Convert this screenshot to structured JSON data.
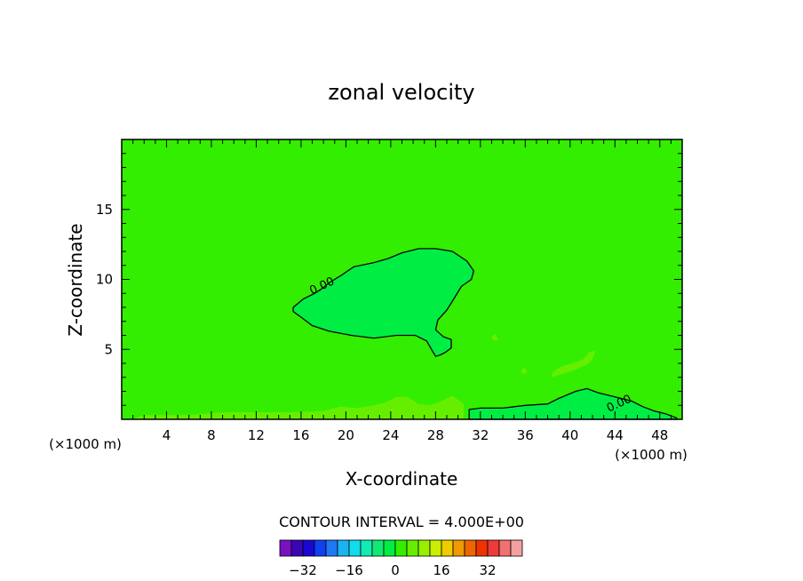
{
  "chart_data": {
    "type": "contour",
    "title": "zonal velocity",
    "xlabel": "X-coordinate",
    "ylabel": "Z-coordinate",
    "x_unit_label": "(×1000 m)",
    "xlim": [
      0,
      50
    ],
    "ylim": [
      0,
      20
    ],
    "x_ticks": [
      4,
      8,
      12,
      16,
      20,
      24,
      28,
      32,
      36,
      40,
      44,
      48
    ],
    "y_ticks": [
      5,
      10,
      15
    ],
    "background_value_color": "#33ee00",
    "contour_interval_label": "CONTOUR INTERVAL = 4.000E+00",
    "contour_labels": [
      {
        "text": "0.00",
        "x": 18.0,
        "z": 9.3
      },
      {
        "text": "0.00",
        "x": 44.5,
        "z": 0.9
      }
    ],
    "regions": [
      {
        "name": "upper-negative-lobe",
        "color": "#00ee44",
        "outline": true,
        "points": [
          [
            15.3,
            8.0
          ],
          [
            16.2,
            8.6
          ],
          [
            17.2,
            9.0
          ],
          [
            17.8,
            9.3
          ],
          [
            18.6,
            9.8
          ],
          [
            19.6,
            10.3
          ],
          [
            20.7,
            10.9
          ],
          [
            22.5,
            11.2
          ],
          [
            23.8,
            11.5
          ],
          [
            25.0,
            11.9
          ],
          [
            26.5,
            12.2
          ],
          [
            28.0,
            12.2
          ],
          [
            29.5,
            12.0
          ],
          [
            30.8,
            11.3
          ],
          [
            31.4,
            10.6
          ],
          [
            31.2,
            10.0
          ],
          [
            30.3,
            9.5
          ],
          [
            29.7,
            8.7
          ],
          [
            29.0,
            7.8
          ],
          [
            28.2,
            7.1
          ],
          [
            28.0,
            6.4
          ],
          [
            28.7,
            5.9
          ],
          [
            29.4,
            5.7
          ],
          [
            29.4,
            5.1
          ],
          [
            28.9,
            4.8
          ],
          [
            28.4,
            4.6
          ],
          [
            28.0,
            4.5
          ],
          [
            27.7,
            4.9
          ],
          [
            27.2,
            5.6
          ],
          [
            26.2,
            6.0
          ],
          [
            24.5,
            6.0
          ],
          [
            22.5,
            5.8
          ],
          [
            20.5,
            6.0
          ],
          [
            18.5,
            6.3
          ],
          [
            17.0,
            6.7
          ],
          [
            16.0,
            7.3
          ],
          [
            15.3,
            7.7
          ]
        ]
      },
      {
        "name": "lower-right-negative-region",
        "color": "#00ee44",
        "outline": true,
        "points": [
          [
            31.0,
            0.0
          ],
          [
            31.0,
            0.7
          ],
          [
            32.0,
            0.8
          ],
          [
            34.0,
            0.8
          ],
          [
            36.0,
            1.0
          ],
          [
            38.0,
            1.1
          ],
          [
            39.0,
            1.5
          ],
          [
            40.5,
            2.0
          ],
          [
            41.5,
            2.2
          ],
          [
            42.5,
            1.9
          ],
          [
            44.0,
            1.6
          ],
          [
            45.5,
            1.3
          ],
          [
            46.5,
            0.9
          ],
          [
            47.5,
            0.6
          ],
          [
            48.5,
            0.4
          ],
          [
            49.5,
            0.1
          ],
          [
            49.5,
            0.0
          ]
        ]
      },
      {
        "name": "right-positive-streak",
        "color": "#66ee00",
        "outline": false,
        "points": [
          [
            38.3,
            3.0
          ],
          [
            40.0,
            3.4
          ],
          [
            41.5,
            3.9
          ],
          [
            42.0,
            4.3
          ],
          [
            42.3,
            4.9
          ],
          [
            41.7,
            4.8
          ],
          [
            41.2,
            4.3
          ],
          [
            40.2,
            4.0
          ],
          [
            39.3,
            3.8
          ],
          [
            38.5,
            3.4
          ]
        ]
      },
      {
        "name": "lower-left-positive-band",
        "color": "#66ee00",
        "outline": false,
        "points": [
          [
            1.0,
            0.0
          ],
          [
            2.0,
            0.3
          ],
          [
            6.0,
            0.3
          ],
          [
            9.0,
            0.5
          ],
          [
            12.0,
            0.5
          ],
          [
            15.0,
            0.5
          ],
          [
            18.0,
            0.6
          ],
          [
            19.5,
            0.9
          ],
          [
            21.0,
            0.8
          ],
          [
            22.5,
            1.0
          ],
          [
            23.5,
            1.2
          ],
          [
            24.5,
            1.6
          ],
          [
            25.5,
            1.6
          ],
          [
            26.5,
            1.1
          ],
          [
            27.5,
            1.0
          ],
          [
            28.5,
            1.3
          ],
          [
            29.5,
            1.7
          ],
          [
            30.5,
            1.1
          ],
          [
            30.5,
            0.0
          ]
        ]
      },
      {
        "name": "small-blob-a",
        "color": "#66ee00",
        "outline": false,
        "points": [
          [
            33.0,
            5.9
          ],
          [
            33.3,
            6.1
          ],
          [
            33.6,
            5.7
          ],
          [
            33.2,
            5.6
          ]
        ]
      },
      {
        "name": "small-blob-b",
        "color": "#66ee00",
        "outline": false,
        "points": [
          [
            35.6,
            3.4
          ],
          [
            35.9,
            3.7
          ],
          [
            36.2,
            3.4
          ],
          [
            35.8,
            3.2
          ]
        ]
      }
    ]
  },
  "colorbar": {
    "tick_labels": [
      "−32",
      "−16",
      "0",
      "16",
      "32"
    ],
    "tick_values": [
      -32,
      -16,
      0,
      16,
      32
    ],
    "colors": [
      "#7a10c0",
      "#3a06b4",
      "#1a08d2",
      "#1040f0",
      "#1e78f2",
      "#1ab4f2",
      "#10dcec",
      "#10ecb4",
      "#10ea74",
      "#00ee44",
      "#33ee00",
      "#66ee00",
      "#9aee00",
      "#ccee00",
      "#eecc00",
      "#ee9a00",
      "#ee6600",
      "#ee3300",
      "#ee3a3a",
      "#f27070",
      "#f4a0a0"
    ]
  }
}
